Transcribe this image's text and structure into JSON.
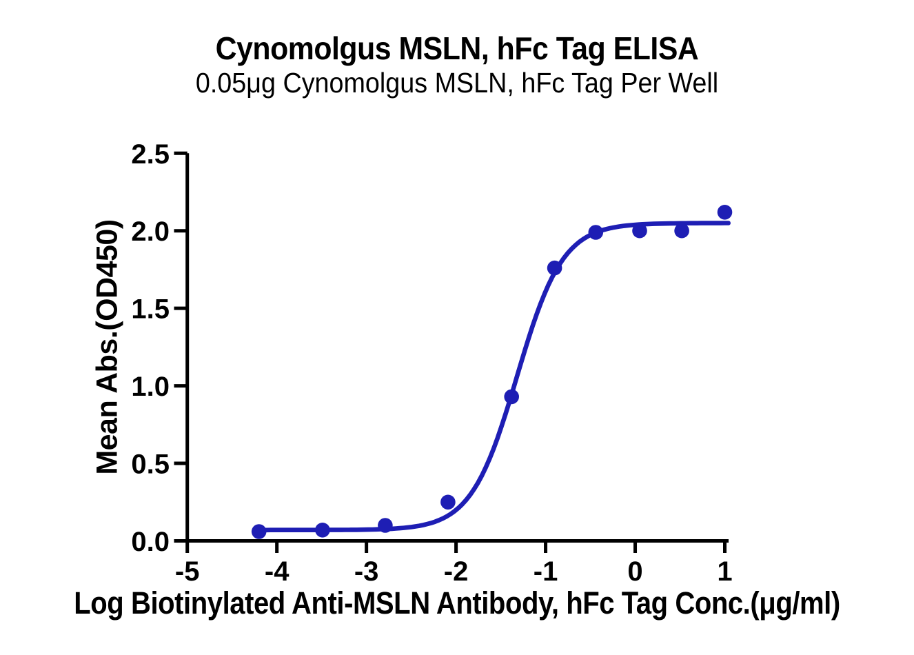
{
  "chart_data": {
    "type": "scatter",
    "title": "Cynomolgus MSLN, hFc Tag ELISA",
    "subtitle": "0.05μg Cynomolgus MSLN, hFc Tag Per Well",
    "xlabel": "Log Biotinylated Anti-MSLN Antibody, hFc Tag Conc.(μg/ml)",
    "ylabel": "Mean Abs.(OD450)",
    "xlim": [
      -5,
      1.05
    ],
    "ylim": [
      0,
      2.5
    ],
    "x_tick_vals": [
      -5,
      -4,
      -3,
      -2,
      -1,
      0,
      1
    ],
    "x_tick_labels": [
      "-5",
      "-4",
      "-3",
      "-2",
      "-1",
      "0",
      "1"
    ],
    "y_tick_vals": [
      0,
      0.5,
      1,
      1.5,
      2,
      2.5
    ],
    "y_tick_labels": [
      "0.0",
      "0.5",
      "1.0",
      "1.5",
      "2.0",
      "2.5"
    ],
    "grid": false,
    "legend": null,
    "points": {
      "log_conc": [
        -4.2,
        -3.49,
        -2.79,
        -2.09,
        -1.38,
        -0.9,
        -0.44,
        0.05,
        0.52,
        1.0
      ],
      "od450": [
        0.06,
        0.07,
        0.1,
        0.25,
        0.93,
        1.76,
        1.99,
        2.0,
        2.0,
        2.12
      ]
    },
    "fit_curve": {
      "model": "4PL sigmoid",
      "bottom": 0.07,
      "top": 2.05,
      "log_ec50": -1.32,
      "hill": 1.7,
      "x_start": -4.2,
      "x_end": 1.04
    },
    "series_color": "#1e1eb4",
    "axis_color": "#000000",
    "background_color": "#ffffff"
  }
}
